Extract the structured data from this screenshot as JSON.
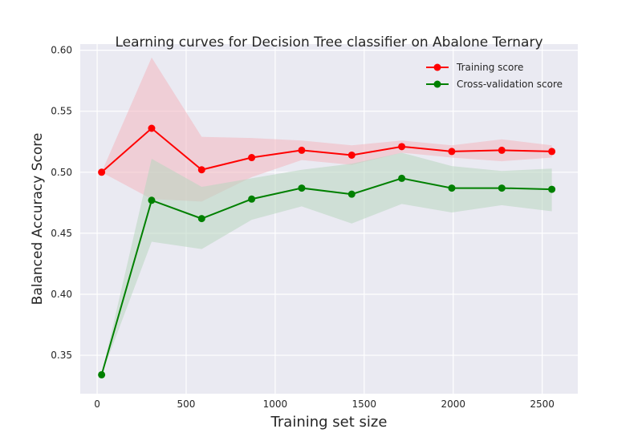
{
  "chart_data": {
    "type": "line",
    "title": "Learning curves for Decision Tree classifier on Abalone Ternary",
    "xlabel": "Training set size",
    "ylabel": "Balanced Accuracy Score",
    "xlim": [
      -95,
      2700
    ],
    "ylim": [
      0.3185,
      0.605
    ],
    "xticks": [
      0,
      500,
      1000,
      1500,
      2000,
      2500
    ],
    "yticks": [
      0.35,
      0.4,
      0.45,
      0.5,
      0.55,
      0.6
    ],
    "xtick_labels": [
      "0",
      "500",
      "1000",
      "1500",
      "2000",
      "2500"
    ],
    "ytick_labels": [
      "0.35",
      "0.40",
      "0.45",
      "0.50",
      "0.55",
      "0.60"
    ],
    "grid": true,
    "legend_position": "upper-right",
    "x": [
      25,
      306,
      587,
      868,
      1149,
      1430,
      1711,
      1992,
      2273,
      2554
    ],
    "series": [
      {
        "name": "Training score",
        "color": "#ff0000",
        "band_color": "#f2b6bf",
        "values": [
          0.5,
          0.536,
          0.502,
          0.512,
          0.518,
          0.514,
          0.521,
          0.517,
          0.518,
          0.517
        ],
        "upper": [
          0.5,
          0.594,
          0.529,
          0.528,
          0.526,
          0.522,
          0.526,
          0.522,
          0.527,
          0.522
        ],
        "lower": [
          0.5,
          0.478,
          0.476,
          0.496,
          0.51,
          0.506,
          0.516,
          0.512,
          0.509,
          0.512
        ]
      },
      {
        "name": "Cross-validation score",
        "color": "#008000",
        "band_color": "#b8d6c0",
        "values": [
          0.334,
          0.477,
          0.462,
          0.478,
          0.487,
          0.482,
          0.495,
          0.487,
          0.487,
          0.486
        ],
        "upper": [
          0.334,
          0.511,
          0.488,
          0.495,
          0.502,
          0.507,
          0.516,
          0.505,
          0.501,
          0.503
        ],
        "lower": [
          0.334,
          0.443,
          0.437,
          0.461,
          0.472,
          0.458,
          0.474,
          0.467,
          0.473,
          0.468
        ]
      }
    ]
  }
}
